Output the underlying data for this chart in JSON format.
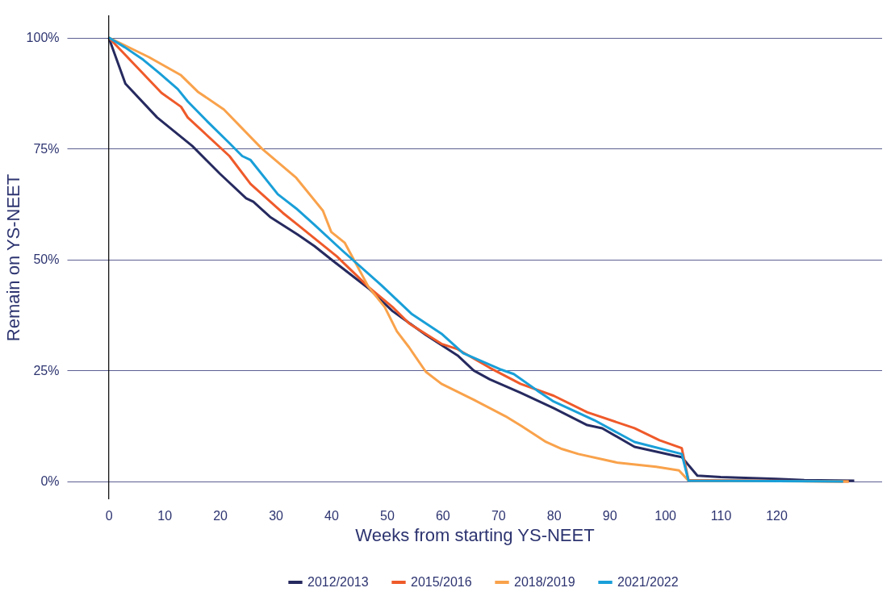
{
  "chart_data": {
    "type": "line",
    "xlabel": "Weeks from starting YS-NEET",
    "ylabel": "Remain on YS-NEET",
    "xlim": [
      -7.5,
      139
    ],
    "xticks": [
      0,
      10,
      20,
      30,
      40,
      50,
      60,
      70,
      80,
      90,
      100,
      110,
      120
    ],
    "ylim": [
      -4,
      105
    ],
    "yticks": [
      {
        "value": 0,
        "label": "0%"
      },
      {
        "value": 25,
        "label": "25%"
      },
      {
        "value": 50,
        "label": "50%"
      },
      {
        "value": 75,
        "label": "75%"
      },
      {
        "value": 100,
        "label": "100%"
      }
    ],
    "grid": "y",
    "legend": "bottom",
    "marker": "none",
    "line_style": "solid",
    "ref_lines": [
      {
        "axis": "x",
        "value": 0,
        "label": null,
        "color": "#000000"
      }
    ],
    "series": [
      {
        "name": "2012/2013",
        "color": "#262a5f",
        "x": [
          0,
          3,
          8.7,
          15,
          20,
          24.7,
          26,
          29,
          34,
          37,
          40,
          46.7,
          51,
          57,
          62.7,
          65.6,
          68.5,
          74,
          80,
          86,
          88.7,
          94.5,
          101.7,
          103,
          105.8,
          110,
          120,
          125,
          134
        ],
        "values": [
          100,
          89.6,
          82,
          75.6,
          69.3,
          63.8,
          63,
          59.6,
          55.6,
          53,
          50,
          43.5,
          38.4,
          33,
          28.4,
          25,
          23,
          20,
          16.5,
          12.7,
          12,
          7.8,
          5.8,
          5.5,
          1.3,
          1.0,
          0.6,
          0.3,
          0.2
        ]
      },
      {
        "name": "2015/2016",
        "color": "#ef5a2a",
        "x": [
          0,
          9.5,
          13,
          14.2,
          21.7,
          25.5,
          31.3,
          34,
          41,
          46.7,
          51,
          54,
          59.8,
          62.7,
          68.5,
          74,
          80,
          86,
          94.5,
          99,
          103,
          104.2,
          133
        ],
        "values": [
          100,
          87.5,
          84.4,
          82,
          73.3,
          67,
          60.5,
          57.8,
          50.7,
          43.8,
          39.3,
          35.6,
          31,
          29.8,
          25.6,
          22,
          19.3,
          15.6,
          12,
          9.3,
          7.5,
          0.3,
          0
        ]
      },
      {
        "name": "2018/2019",
        "color": "#f9a24b",
        "x": [
          0,
          7.2,
          13,
          16,
          20.7,
          27.5,
          33.7,
          38.5,
          40,
          42.4,
          46.7,
          49.6,
          51.8,
          54,
          57,
          59.8,
          65.6,
          71.3,
          74.2,
          78.6,
          81.5,
          84.4,
          91.6,
          98.4,
          102.5,
          104.2,
          133
        ],
        "values": [
          100,
          95.6,
          91.5,
          87.8,
          83.8,
          75,
          68.4,
          61,
          56.2,
          53.8,
          43.8,
          39.3,
          33.8,
          30.2,
          24.7,
          22,
          18.4,
          14.7,
          12.5,
          8.9,
          7.3,
          6.2,
          4.2,
          3.3,
          2.5,
          0.2,
          0
        ]
      },
      {
        "name": "2021/2022",
        "color": "#199fd8",
        "x": [
          0,
          2.9,
          6.2,
          9.1,
          12.4,
          14.2,
          17.8,
          21.7,
          24,
          25.5,
          30.4,
          33.7,
          37,
          42,
          49,
          54.4,
          59.8,
          63.7,
          70.3,
          72.8,
          77,
          80,
          87.3,
          94.5,
          103,
          104.2,
          132
        ],
        "values": [
          100,
          97.8,
          95,
          92,
          88.4,
          85.6,
          81,
          76.2,
          73.3,
          72.4,
          64.7,
          61.5,
          57.8,
          52,
          44.2,
          37.8,
          33.3,
          28.9,
          25.3,
          24.2,
          20.5,
          18,
          13.8,
          8.9,
          6.2,
          0.2,
          0
        ]
      }
    ]
  }
}
